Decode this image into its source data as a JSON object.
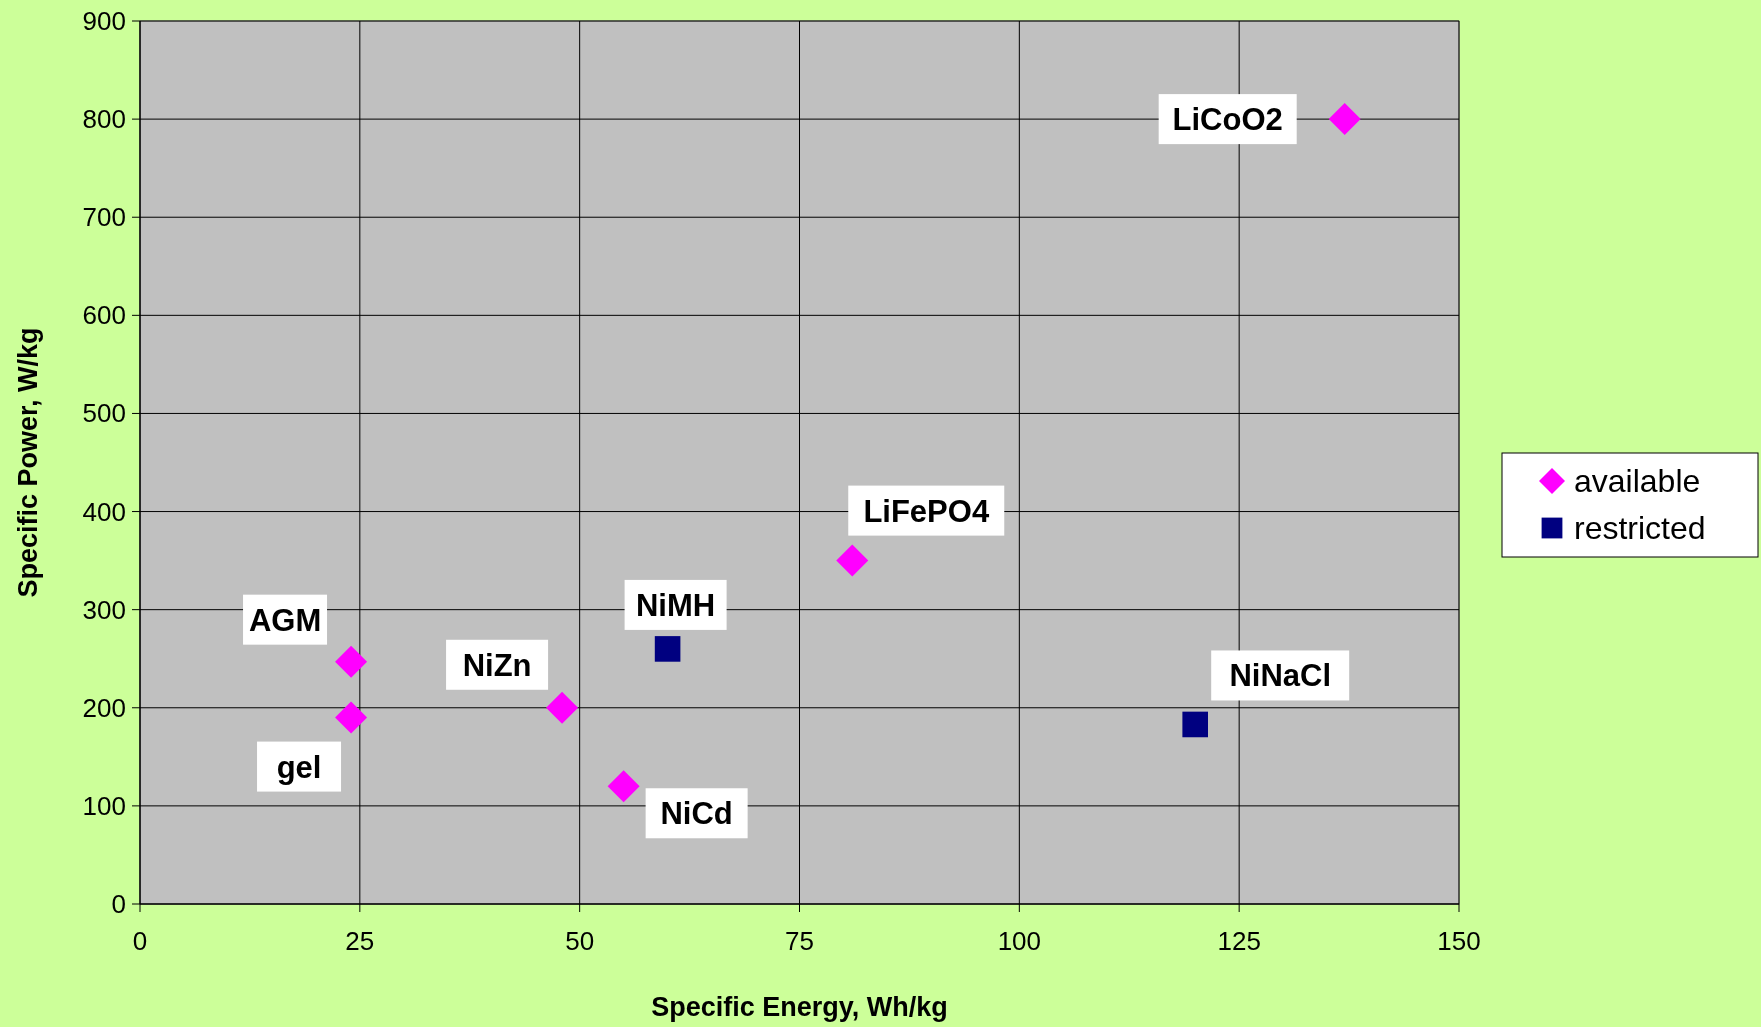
{
  "chart_data": {
    "type": "scatter",
    "xlabel": "Specific Energy, Wh/kg",
    "ylabel": "Specific Power, W/kg",
    "xlim": [
      0,
      150
    ],
    "xticks": [
      0,
      25,
      50,
      75,
      100,
      125,
      150
    ],
    "ylim": [
      0,
      900
    ],
    "yticks": [
      0,
      100,
      200,
      300,
      400,
      500,
      600,
      700,
      800,
      900
    ],
    "grid": true,
    "legend": "right",
    "series": [
      {
        "name": "available",
        "color": "#ff00ff",
        "marker": "diamond",
        "x": [
          137,
          81,
          24,
          24,
          48,
          55
        ],
        "values": [
          800,
          350,
          247,
          190,
          200,
          120
        ]
      },
      {
        "name": "restricted",
        "color": "#000080",
        "marker": "square",
        "x": [
          60,
          120
        ],
        "values": [
          260,
          183
        ]
      }
    ],
    "annotations": [
      {
        "text": "LiCoO2",
        "x": 137,
        "y": 800
      },
      {
        "text": "LiFePO4",
        "x": 81,
        "y": 350
      },
      {
        "text": "AGM",
        "x": 24,
        "y": 247
      },
      {
        "text": "gel",
        "x": 24,
        "y": 190
      },
      {
        "text": "NiZn",
        "x": 48,
        "y": 200
      },
      {
        "text": "NiCd",
        "x": 55,
        "y": 120
      },
      {
        "text": "NiMH",
        "x": 60,
        "y": 260
      },
      {
        "text": "NiNaCl",
        "x": 120,
        "y": 183
      }
    ]
  }
}
